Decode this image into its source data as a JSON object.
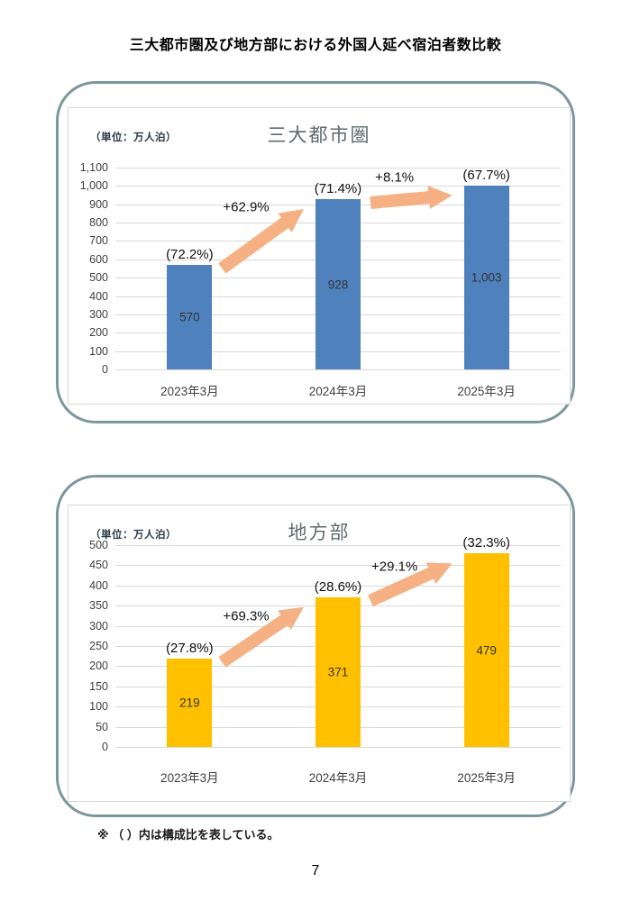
{
  "page": {
    "title": "三大都市圏及び地方部における外国人延べ宿泊者数比較",
    "footnote": "※ （ ）内は構成比を表している。",
    "page_number": "7"
  },
  "chart_data": [
    {
      "type": "bar",
      "title": "三大都市圏",
      "unit_label": "（単位：万人泊）",
      "categories": [
        "2023年3月",
        "2024年3月",
        "2025年3月"
      ],
      "values": [
        570,
        928,
        1003
      ],
      "value_labels": [
        "570",
        "928",
        "1,003"
      ],
      "share_labels": [
        "(72.2%)",
        "(71.4%)",
        "(67.7%)"
      ],
      "growth_labels": [
        "+62.9%",
        "+8.1%"
      ],
      "ylim": [
        0,
        1100
      ],
      "ytick_step": 100,
      "ytick_labels": [
        "0",
        "100",
        "200",
        "300",
        "400",
        "500",
        "600",
        "700",
        "800",
        "900",
        "1,000",
        "1,100"
      ],
      "grid": true,
      "legend": "none",
      "bar_color": "#4F81BD",
      "arrow_color": "#F5B183"
    },
    {
      "type": "bar",
      "title": "地方部",
      "unit_label": "（単位：万人泊）",
      "categories": [
        "2023年3月",
        "2024年3月",
        "2025年3月"
      ],
      "values": [
        219,
        371,
        479
      ],
      "value_labels": [
        "219",
        "371",
        "479"
      ],
      "share_labels": [
        "(27.8%)",
        "(28.6%)",
        "(32.3%)"
      ],
      "growth_labels": [
        "+69.3%",
        "+29.1%"
      ],
      "ylim": [
        0,
        500
      ],
      "ytick_step": 50,
      "ytick_labels": [
        "0",
        "50",
        "100",
        "150",
        "200",
        "250",
        "300",
        "350",
        "400",
        "450",
        "500"
      ],
      "grid": true,
      "legend": "none",
      "bar_color": "#FFC000",
      "arrow_color": "#F5B183"
    }
  ]
}
